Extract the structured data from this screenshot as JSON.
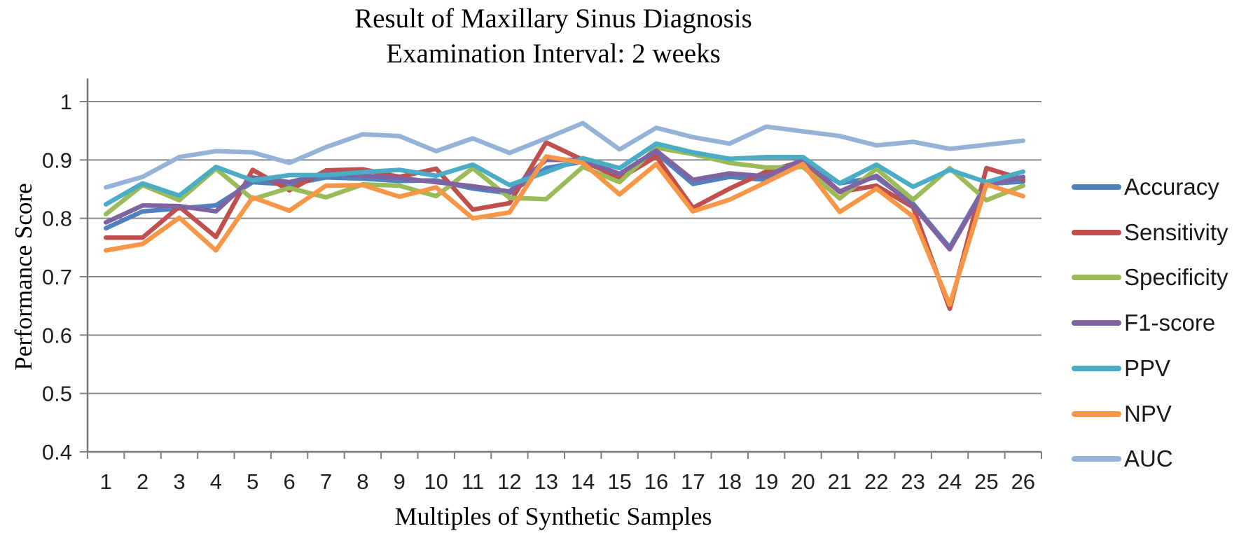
{
  "title": {
    "line1": "Result of Maxillary Sinus Diagnosis",
    "line2": "Examination Interval: 2 weeks"
  },
  "axes": {
    "y_label": "Performance Score",
    "x_label": "Multiples of Synthetic Samples"
  },
  "chart_data": {
    "type": "line",
    "title": "Result of Maxillary Sinus Diagnosis — Examination Interval: 2 weeks",
    "xlabel": "Multiples of Synthetic Samples",
    "ylabel": "Performance Score",
    "ylim": [
      0.4,
      1.0
    ],
    "y_tick_labels": [
      "1",
      "0.9",
      "0.8",
      "0.7",
      "0.6",
      "0.5",
      "0.4"
    ],
    "grid": true,
    "legend_position": "right",
    "categories": [
      "1",
      "2",
      "3",
      "4",
      "5",
      "6",
      "7",
      "8",
      "9",
      "10",
      "11",
      "12",
      "13",
      "14",
      "15",
      "16",
      "17",
      "18",
      "19",
      "20",
      "21",
      "22",
      "23",
      "24",
      "25",
      "26"
    ],
    "series": [
      {
        "name": "Accuracy",
        "color": "#4F81BD",
        "values": [
          0.783,
          0.812,
          0.817,
          0.822,
          0.862,
          0.858,
          0.87,
          0.868,
          0.864,
          0.865,
          0.851,
          0.843,
          0.886,
          0.897,
          0.872,
          0.912,
          0.859,
          0.871,
          0.866,
          0.898,
          0.86,
          0.87,
          0.825,
          0.75,
          0.859,
          0.863
        ]
      },
      {
        "name": "Sensitivity",
        "color": "#C0504D",
        "values": [
          0.767,
          0.767,
          0.82,
          0.768,
          0.883,
          0.848,
          0.882,
          0.884,
          0.871,
          0.885,
          0.815,
          0.826,
          0.93,
          0.9,
          0.868,
          0.906,
          0.818,
          0.851,
          0.88,
          0.898,
          0.845,
          0.856,
          0.819,
          0.645,
          0.886,
          0.867
        ]
      },
      {
        "name": "Specificity",
        "color": "#9BBB59",
        "values": [
          0.807,
          0.857,
          0.831,
          0.885,
          0.833,
          0.852,
          0.836,
          0.858,
          0.856,
          0.838,
          0.886,
          0.835,
          0.833,
          0.888,
          0.862,
          0.921,
          0.91,
          0.895,
          0.887,
          0.888,
          0.834,
          0.885,
          0.832,
          0.886,
          0.831,
          0.856
        ]
      },
      {
        "name": "F1-score",
        "color": "#8064A2",
        "values": [
          0.793,
          0.822,
          0.821,
          0.812,
          0.87,
          0.862,
          0.877,
          0.873,
          0.869,
          0.862,
          0.855,
          0.846,
          0.9,
          0.9,
          0.876,
          0.916,
          0.866,
          0.877,
          0.872,
          0.901,
          0.846,
          0.873,
          0.822,
          0.747,
          0.857,
          0.871
        ]
      },
      {
        "name": "PPV",
        "color": "#4BACC6",
        "values": [
          0.824,
          0.86,
          0.839,
          0.888,
          0.865,
          0.874,
          0.874,
          0.879,
          0.883,
          0.873,
          0.892,
          0.857,
          0.879,
          0.903,
          0.886,
          0.928,
          0.913,
          0.902,
          0.905,
          0.905,
          0.86,
          0.892,
          0.854,
          0.883,
          0.862,
          0.88
        ]
      },
      {
        "name": "NPV",
        "color": "#F79646",
        "values": [
          0.745,
          0.756,
          0.801,
          0.745,
          0.836,
          0.813,
          0.856,
          0.857,
          0.837,
          0.853,
          0.8,
          0.81,
          0.906,
          0.895,
          0.841,
          0.893,
          0.812,
          0.832,
          0.862,
          0.893,
          0.811,
          0.851,
          0.803,
          0.652,
          0.858,
          0.838
        ]
      },
      {
        "name": "AUC",
        "color": "#95B3D7",
        "values": [
          0.853,
          0.871,
          0.905,
          0.915,
          0.913,
          0.895,
          0.922,
          0.944,
          0.941,
          0.915,
          0.937,
          0.912,
          0.937,
          0.963,
          0.918,
          0.955,
          0.939,
          0.928,
          0.957,
          0.949,
          0.941,
          0.925,
          0.931,
          0.919,
          0.926,
          0.933
        ]
      }
    ]
  }
}
